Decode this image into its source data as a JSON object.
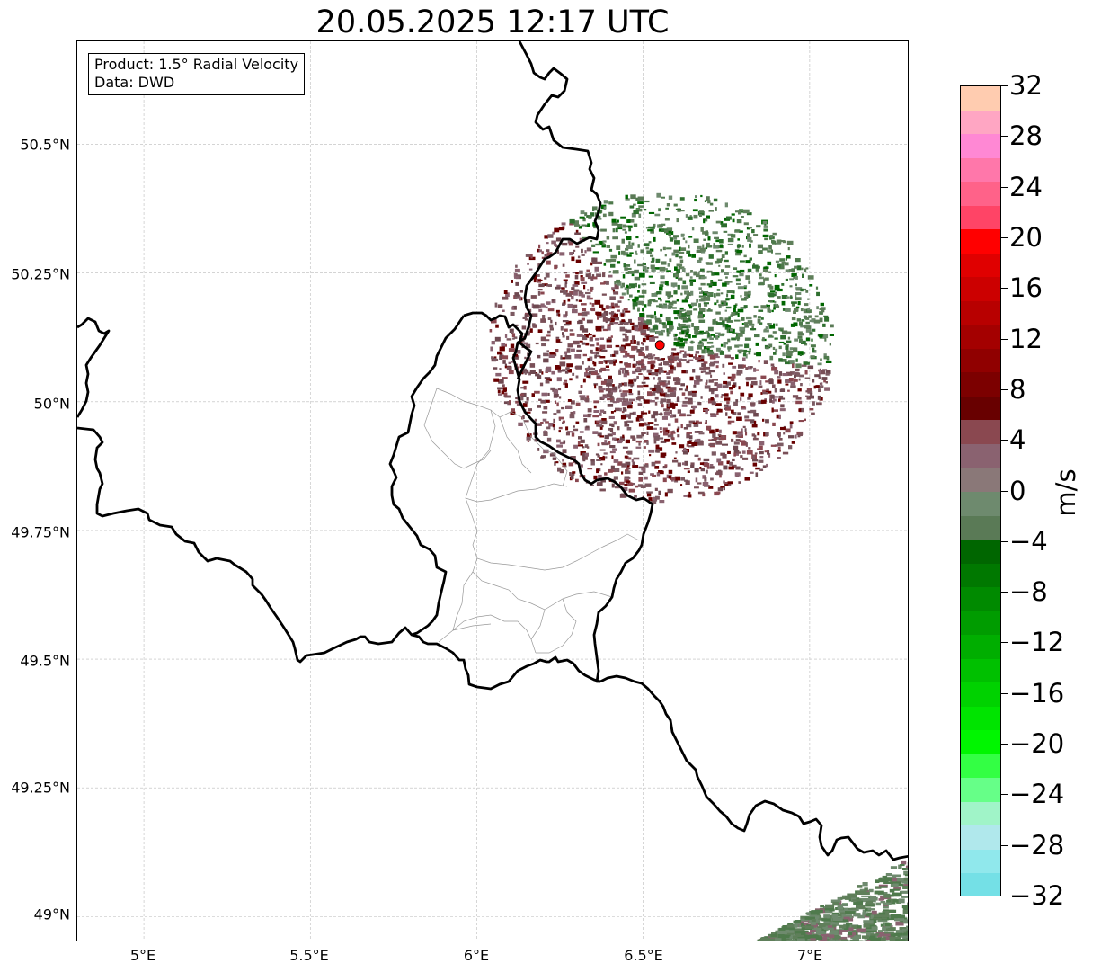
{
  "title": "20.05.2025 12:17 UTC",
  "info": {
    "product": "Product: 1.5° Radial Velocity",
    "source": "Data: DWD"
  },
  "lat_labels": [
    "50.5°N",
    "50.25°N",
    "50°N",
    "49.75°N",
    "49.5°N",
    "49.25°N",
    "49°N"
  ],
  "lon_labels": [
    "5°E",
    "5.5°E",
    "6°E",
    "6.5°E",
    "7°E"
  ],
  "map_extent": {
    "lon": [
      4.8,
      7.3
    ],
    "lat": [
      48.95,
      50.7
    ]
  },
  "gridlines": true,
  "radar_site": {
    "lon": 6.55,
    "lat": 50.11,
    "color": "#ff0000"
  },
  "colorbar": {
    "unit": "m/s",
    "range": [
      -32,
      32
    ],
    "tick_labels": [
      "32",
      "28",
      "24",
      "20",
      "16",
      "12",
      "8",
      "4",
      "0",
      "−4",
      "−8",
      "−12",
      "−16",
      "−20",
      "−24",
      "−28",
      "−32"
    ],
    "colors_top_to_bottom": [
      "#ffccb0",
      "#ffa6c3",
      "#ff88d4",
      "#ff77aa",
      "#ff6289",
      "#ff4466",
      "#ff0000",
      "#e00000",
      "#cc0000",
      "#b80000",
      "#a40000",
      "#900000",
      "#7c0000",
      "#680000",
      "#8a4850",
      "#8a6270",
      "#8a7878",
      "#6e8a6e",
      "#5a7a56",
      "#006600",
      "#007800",
      "#008a00",
      "#009c00",
      "#00ae00",
      "#00c000",
      "#00d200",
      "#00e400",
      "#00f600",
      "#33ff44",
      "#66ff88",
      "#a0f4c8",
      "#b0e8ec",
      "#90e8ec",
      "#74e0e6"
    ]
  }
}
